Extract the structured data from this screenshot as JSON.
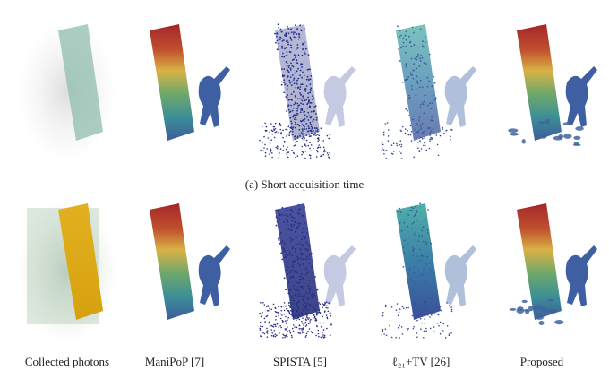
{
  "figure": {
    "rows": [
      {
        "caption": "(a) Short acquisition time"
      },
      {}
    ],
    "column_labels": [
      "Collected photons",
      "ManiPoP [7]",
      "SPISTA [5]",
      "ℓ₂₁+TV [26]",
      "Proposed"
    ]
  }
}
